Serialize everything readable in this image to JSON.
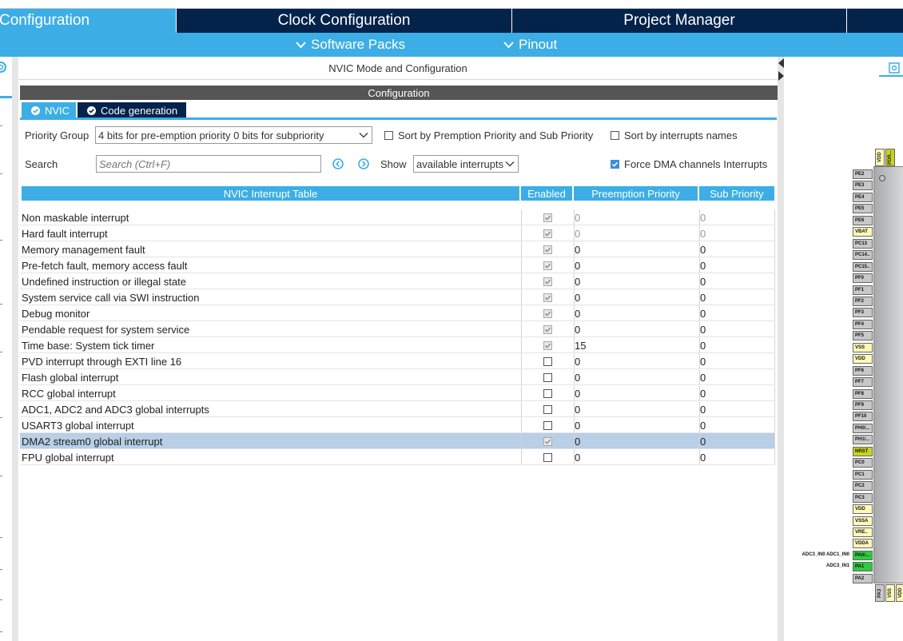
{
  "main_tabs": {
    "pinout_partial": "Configuration",
    "clock": "Clock Configuration",
    "project": "Project Manager"
  },
  "sub_bar": {
    "software_packs": "Software Packs",
    "pinout": "Pinout"
  },
  "panel": {
    "mode_title": "NVIC Mode and Configuration",
    "config_title": "Configuration",
    "tabs": [
      {
        "label": "NVIC"
      },
      {
        "label": "Code generation"
      }
    ]
  },
  "controls": {
    "priority_group_label": "Priority Group",
    "priority_group_value": "4 bits for pre-emption priority 0 bits for subpriority",
    "sort_premption_label": "Sort by Premption Priority and Sub Priority",
    "sort_premption_checked": false,
    "sort_names_label": "Sort by interrupts names",
    "sort_names_checked": false,
    "search_label": "Search",
    "search_placeholder": "Search (Ctrl+F)",
    "show_label": "Show",
    "show_value": "available interrupts",
    "force_dma_label": "Force DMA channels Interrupts",
    "force_dma_checked": true
  },
  "table": {
    "headers": [
      "NVIC Interrupt Table",
      "Enabled",
      "Preemption Priority",
      "Sub Priority"
    ],
    "rows": [
      {
        "name": "Non maskable interrupt",
        "enabled": true,
        "locked": true,
        "preemption": "0",
        "sub": "0",
        "muted": true
      },
      {
        "name": "Hard fault interrupt",
        "enabled": true,
        "locked": true,
        "preemption": "0",
        "sub": "0",
        "muted": true
      },
      {
        "name": "Memory management fault",
        "enabled": true,
        "locked": true,
        "preemption": "0",
        "sub": "0"
      },
      {
        "name": "Pre-fetch fault, memory access fault",
        "enabled": true,
        "locked": true,
        "preemption": "0",
        "sub": "0"
      },
      {
        "name": "Undefined instruction or illegal state",
        "enabled": true,
        "locked": true,
        "preemption": "0",
        "sub": "0"
      },
      {
        "name": "System service call via SWI instruction",
        "enabled": true,
        "locked": true,
        "preemption": "0",
        "sub": "0"
      },
      {
        "name": "Debug monitor",
        "enabled": true,
        "locked": true,
        "preemption": "0",
        "sub": "0"
      },
      {
        "name": "Pendable request for system service",
        "enabled": true,
        "locked": true,
        "preemption": "0",
        "sub": "0"
      },
      {
        "name": "Time base: System tick timer",
        "enabled": true,
        "locked": true,
        "preemption": "15",
        "sub": "0"
      },
      {
        "name": "PVD interrupt through EXTI line 16",
        "enabled": false,
        "locked": false,
        "preemption": "0",
        "sub": "0"
      },
      {
        "name": "Flash global interrupt",
        "enabled": false,
        "locked": false,
        "preemption": "0",
        "sub": "0"
      },
      {
        "name": "RCC global interrupt",
        "enabled": false,
        "locked": false,
        "preemption": "0",
        "sub": "0"
      },
      {
        "name": "ADC1, ADC2 and ADC3 global interrupts",
        "enabled": false,
        "locked": false,
        "preemption": "0",
        "sub": "0"
      },
      {
        "name": "USART3 global interrupt",
        "enabled": false,
        "locked": false,
        "preemption": "0",
        "sub": "0"
      },
      {
        "name": "DMA2 stream0 global interrupt",
        "enabled": true,
        "locked": true,
        "preemption": "0",
        "sub": "0",
        "selected": true
      },
      {
        "name": "FPU global interrupt",
        "enabled": false,
        "locked": false,
        "preemption": "0",
        "sub": "0"
      }
    ]
  },
  "chip": {
    "top_pins": [
      "VDD",
      "PDR..."
    ],
    "left_pins": [
      {
        "label": "PE2",
        "color": "#c8c8c8"
      },
      {
        "label": "PE3",
        "color": "#c8c8c8"
      },
      {
        "label": "PE4",
        "color": "#c8c8c8"
      },
      {
        "label": "PE5",
        "color": "#c8c8c8"
      },
      {
        "label": "PE6",
        "color": "#c8c8c8"
      },
      {
        "label": "VBAT",
        "color": "#fff9b8"
      },
      {
        "label": "PC13",
        "color": "#c8c8c8"
      },
      {
        "label": "PC14..",
        "color": "#c8c8c8"
      },
      {
        "label": "PC15..",
        "color": "#c8c8c8"
      },
      {
        "label": "PF0",
        "color": "#c8c8c8"
      },
      {
        "label": "PF1",
        "color": "#c8c8c8"
      },
      {
        "label": "PF2",
        "color": "#c8c8c8"
      },
      {
        "label": "PF3",
        "color": "#c8c8c8"
      },
      {
        "label": "PF4",
        "color": "#c8c8c8"
      },
      {
        "label": "PF5",
        "color": "#c8c8c8"
      },
      {
        "label": "VSS",
        "color": "#fff9b8"
      },
      {
        "label": "VDD",
        "color": "#fff9b8"
      },
      {
        "label": "PF6",
        "color": "#c8c8c8"
      },
      {
        "label": "PF7",
        "color": "#c8c8c8"
      },
      {
        "label": "PF8",
        "color": "#c8c8c8"
      },
      {
        "label": "PF9",
        "color": "#c8c8c8"
      },
      {
        "label": "PF10",
        "color": "#c8c8c8"
      },
      {
        "label": "PH0/...",
        "color": "#c8c8c8"
      },
      {
        "label": "PH1/...",
        "color": "#c8c8c8"
      },
      {
        "label": "NRST",
        "color": "#c7d41c"
      },
      {
        "label": "PC0",
        "color": "#c8c8c8"
      },
      {
        "label": "PC1",
        "color": "#c8c8c8"
      },
      {
        "label": "PC2",
        "color": "#c8c8c8"
      },
      {
        "label": "PC3",
        "color": "#c8c8c8"
      },
      {
        "label": "VDD",
        "color": "#fff9b8"
      },
      {
        "label": "VSSA",
        "color": "#fff9b8"
      },
      {
        "label": "VRE..",
        "color": "#fff9b8"
      },
      {
        "label": "VDDA",
        "color": "#fff9b8"
      },
      {
        "label": "PA0/...",
        "color": "#2ecc40"
      },
      {
        "label": "PA1",
        "color": "#2ecc40"
      },
      {
        "label": "PA2",
        "color": "#c8c8c8"
      }
    ],
    "signals": [
      {
        "text": "ADC3_IN0 ADC1_IN0",
        "pin_index": 33
      },
      {
        "text": "ADC3_IN1",
        "pin_index": 34
      }
    ],
    "bottom_pins": [
      "PA3",
      "VSS",
      "VDD"
    ]
  },
  "colors": {
    "accent": "#3caee5",
    "navy": "#03234b",
    "selected_row": "#b8cfe6"
  }
}
